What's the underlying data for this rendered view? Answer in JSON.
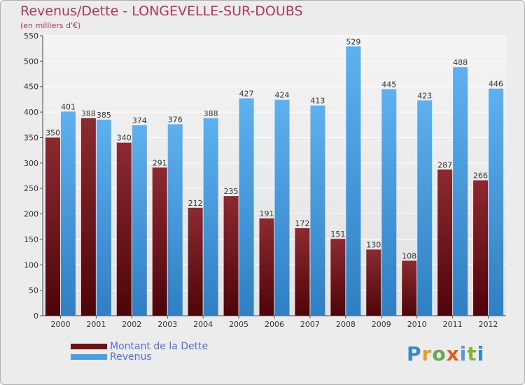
{
  "chart_data": {
    "type": "bar",
    "title": "Revenus/Dette - LONGEVELLE-SUR-DOUBS",
    "subtitle": "(en milliers d'€)",
    "categories": [
      "2000",
      "2001",
      "2002",
      "2003",
      "2004",
      "2005",
      "2006",
      "2007",
      "2008",
      "2009",
      "2010",
      "2011",
      "2012"
    ],
    "series": [
      {
        "name": "Montant de la Dette",
        "color": "#7a1a1f",
        "values": [
          350,
          388,
          340,
          291,
          212,
          235,
          191,
          172,
          151,
          130,
          108,
          287,
          266
        ]
      },
      {
        "name": "Revenus",
        "color": "#4a9fe0",
        "values": [
          401,
          385,
          374,
          376,
          388,
          427,
          424,
          413,
          529,
          445,
          423,
          488,
          446
        ]
      }
    ],
    "ylim": [
      0,
      550
    ],
    "yticks": [
      0,
      50,
      100,
      150,
      200,
      250,
      300,
      350,
      400,
      450,
      500,
      550
    ],
    "grid": true,
    "legend": "bottom-left"
  },
  "logo": {
    "text": "Proxiti"
  }
}
